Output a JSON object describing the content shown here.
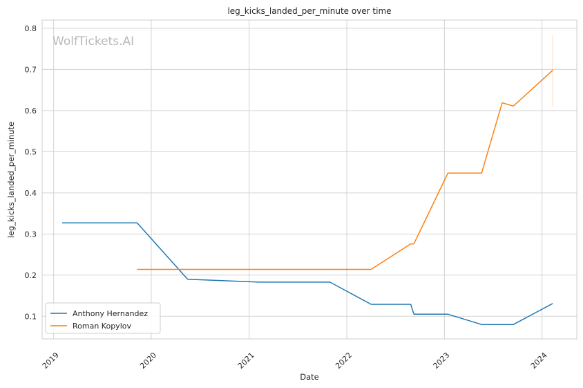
{
  "chart_data": {
    "type": "line",
    "title": "leg_kicks_landed_per_minute over time",
    "xlabel": "Date",
    "ylabel": "leg_kicks_landed_per_minute",
    "watermark": "WolfTickets.AI",
    "x_ticks": [
      "2019",
      "2020",
      "2021",
      "2022",
      "2023",
      "2024"
    ],
    "y_ticks": [
      "0.1",
      "0.2",
      "0.3",
      "0.4",
      "0.5",
      "0.6",
      "0.7",
      "0.8"
    ],
    "xlim": [
      "2018-11-19",
      "2024-05-10"
    ],
    "ylim": [
      0.045,
      0.82
    ],
    "grid": true,
    "legend_position": "lower-left",
    "series": [
      {
        "name": "Anthony Hernandez",
        "color": "#1f77b4",
        "points": [
          [
            "2019-02-02",
            0.327
          ],
          [
            "2019-11-09",
            0.327
          ],
          [
            "2020-05-16",
            0.19
          ],
          [
            "2021-02-06",
            0.183
          ],
          [
            "2021-10-30",
            0.183
          ],
          [
            "2022-04-02",
            0.129
          ],
          [
            "2022-08-28",
            0.129
          ],
          [
            "2022-09-09",
            0.105
          ],
          [
            "2023-01-14",
            0.105
          ],
          [
            "2023-05-20",
            0.08
          ],
          [
            "2023-09-16",
            0.08
          ],
          [
            "2024-02-10",
            0.131
          ]
        ]
      },
      {
        "name": "Roman Kopylov",
        "color": "#ff7f0e",
        "points": [
          [
            "2019-11-09",
            0.214
          ],
          [
            "2022-04-02",
            0.214
          ],
          [
            "2022-08-28",
            0.276
          ],
          [
            "2022-09-09",
            0.276
          ],
          [
            "2023-01-14",
            0.448
          ],
          [
            "2023-05-20",
            0.448
          ],
          [
            "2023-08-05",
            0.619
          ],
          [
            "2023-09-16",
            0.611
          ],
          [
            "2024-02-10",
            0.698
          ]
        ]
      }
    ],
    "error_bar": {
      "x": "2024-02-10",
      "low": 0.61,
      "high": 0.783,
      "color": "#ff7f0e"
    }
  }
}
